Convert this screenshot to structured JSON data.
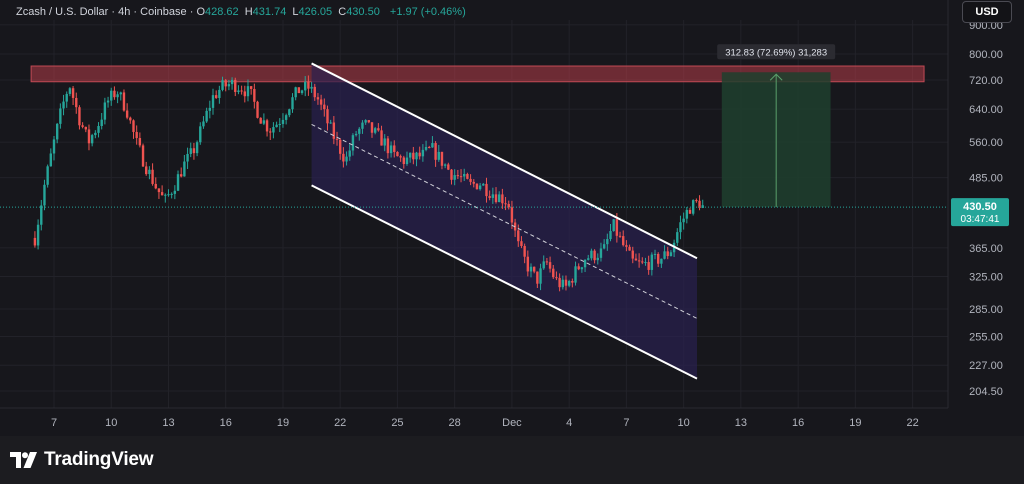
{
  "header": {
    "symbol": "Zcash / U.S. Dollar",
    "interval": "4h",
    "exchange": "Coinbase",
    "sep": "·",
    "open_label": "O",
    "open": "428.62",
    "high_label": "H",
    "high": "431.74",
    "low_label": "L",
    "low": "426.05",
    "close_label": "C",
    "close": "430.50",
    "change": "+1.97 (+0.46%)"
  },
  "currency_button": "USD",
  "price_tag": {
    "price": "430.50",
    "countdown": "03:47:41"
  },
  "measure_label": "312.83 (72.69%) 31,283",
  "branding": {
    "name": "TradingView"
  },
  "colors": {
    "up": "#26a69a",
    "down": "#ef5350",
    "resistance_zone": "#b43c48",
    "channel_fill": "#2a2150",
    "target_zone": "#1e3f2e"
  },
  "chart_data": {
    "type": "candlestick",
    "title": "Zcash / U.S. Dollar · 4h · Coinbase",
    "y_ticks": [
      "900.00",
      "800.00",
      "720.00",
      "640.00",
      "560.00",
      "485.00",
      "365.00",
      "325.00",
      "285.00",
      "255.00",
      "227.00",
      "204.50"
    ],
    "y_tick_values": [
      900,
      800,
      720,
      640,
      560,
      485,
      365,
      325,
      285,
      255,
      227,
      204.5
    ],
    "y_scale": "log",
    "ylim": [
      185,
      940
    ],
    "x_ticks": [
      "7",
      "10",
      "13",
      "16",
      "19",
      "22",
      "25",
      "28",
      "Dec",
      "4",
      "7",
      "10",
      "13",
      "16",
      "19",
      "22"
    ],
    "x_tick_days": [
      7,
      10,
      13,
      16,
      19,
      22,
      25,
      28,
      31,
      34,
      37,
      40,
      43,
      46,
      49,
      52
    ],
    "x_unit": "days from Nov 1 (Dec 1 = 31)",
    "last_price": 430.5,
    "closes_path": [
      [
        6.0,
        380
      ],
      [
        6.5,
        470
      ],
      [
        7.0,
        560
      ],
      [
        7.4,
        640
      ],
      [
        7.8,
        710
      ],
      [
        8.3,
        620
      ],
      [
        8.8,
        560
      ],
      [
        9.3,
        600
      ],
      [
        9.8,
        660
      ],
      [
        10.3,
        690
      ],
      [
        10.8,
        640
      ],
      [
        11.3,
        560
      ],
      [
        11.8,
        510
      ],
      [
        12.3,
        470
      ],
      [
        12.8,
        440
      ],
      [
        13.3,
        470
      ],
      [
        13.8,
        510
      ],
      [
        14.3,
        540
      ],
      [
        14.8,
        600
      ],
      [
        15.3,
        670
      ],
      [
        15.8,
        700
      ],
      [
        16.3,
        710
      ],
      [
        16.8,
        700
      ],
      [
        17.3,
        680
      ],
      [
        17.8,
        620
      ],
      [
        18.3,
        590
      ],
      [
        18.8,
        610
      ],
      [
        19.3,
        650
      ],
      [
        19.8,
        690
      ],
      [
        20.3,
        700
      ],
      [
        20.8,
        670
      ],
      [
        21.3,
        610
      ],
      [
        21.8,
        560
      ],
      [
        22.3,
        520
      ],
      [
        22.8,
        580
      ],
      [
        23.3,
        600
      ],
      [
        23.8,
        580
      ],
      [
        24.3,
        560
      ],
      [
        24.8,
        530
      ],
      [
        25.3,
        520
      ],
      [
        25.8,
        525
      ],
      [
        26.3,
        530
      ],
      [
        26.8,
        545
      ],
      [
        27.3,
        520
      ],
      [
        27.8,
        495
      ],
      [
        28.3,
        485
      ],
      [
        28.8,
        470
      ],
      [
        29.3,
        475
      ],
      [
        29.8,
        460
      ],
      [
        30.3,
        450
      ],
      [
        30.8,
        440
      ],
      [
        31.3,
        370
      ],
      [
        31.8,
        340
      ],
      [
        32.3,
        320
      ],
      [
        32.8,
        345
      ],
      [
        33.3,
        320
      ],
      [
        33.8,
        310
      ],
      [
        34.3,
        330
      ],
      [
        34.8,
        350
      ],
      [
        35.3,
        355
      ],
      [
        35.8,
        360
      ],
      [
        36.3,
        400
      ],
      [
        36.8,
        370
      ],
      [
        37.3,
        345
      ],
      [
        37.8,
        340
      ],
      [
        38.3,
        345
      ],
      [
        38.8,
        350
      ],
      [
        39.3,
        360
      ],
      [
        39.8,
        400
      ],
      [
        40.3,
        430
      ],
      [
        40.8,
        440
      ],
      [
        41.0,
        430.5
      ]
    ],
    "channel_upper": {
      "from": {
        "day": 20.5,
        "price": 770
      },
      "to": {
        "day": 40.7,
        "price": 350
      }
    },
    "channel_lower": {
      "from": {
        "day": 20.5,
        "price": 470
      },
      "to": {
        "day": 40.7,
        "price": 215
      }
    },
    "resistance_zone": {
      "from_day": 5.8,
      "to_day": 52.6,
      "price_low": 715,
      "price_high": 762
    },
    "target_zone": {
      "from_day": 42.0,
      "to_day": 47.7,
      "price_low": 430.5,
      "price_high": 743
    }
  }
}
